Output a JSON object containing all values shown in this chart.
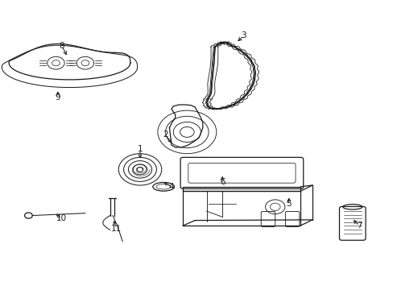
{
  "bg_color": "#ffffff",
  "line_color": "#1a1a1a",
  "fig_width": 4.89,
  "fig_height": 3.6,
  "dpi": 100,
  "label_positions": {
    "8": [
      0.155,
      0.845,
      0.17,
      0.805
    ],
    "9": [
      0.145,
      0.665,
      0.145,
      0.695
    ],
    "1": [
      0.355,
      0.485,
      0.355,
      0.445
    ],
    "4": [
      0.435,
      0.355,
      0.41,
      0.375
    ],
    "2": [
      0.42,
      0.535,
      0.44,
      0.5
    ],
    "3": [
      0.62,
      0.88,
      0.6,
      0.855
    ],
    "6": [
      0.565,
      0.37,
      0.565,
      0.4
    ],
    "5": [
      0.735,
      0.295,
      0.735,
      0.325
    ],
    "7": [
      0.915,
      0.22,
      0.895,
      0.245
    ],
    "10": [
      0.155,
      0.245,
      0.135,
      0.265
    ],
    "11": [
      0.295,
      0.21,
      0.285,
      0.245
    ]
  }
}
